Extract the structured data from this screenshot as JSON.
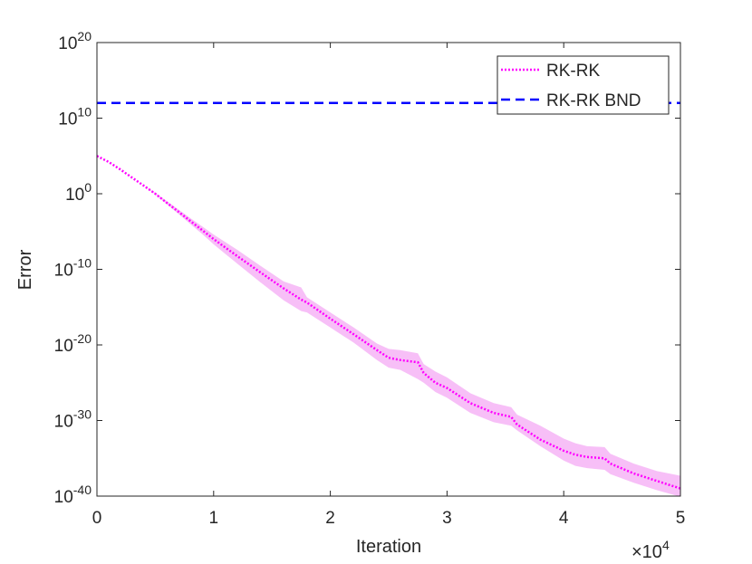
{
  "chart_data": {
    "type": "line",
    "title": "",
    "xlabel": "Iteration",
    "ylabel": "Error",
    "x_multiplier_label": {
      "base": "×10",
      "exp": "4"
    },
    "xlim": [
      0,
      50000
    ],
    "ylim": [
      1e-40,
      1e+20
    ],
    "yscale": "log",
    "x_ticks": [
      0,
      10000,
      20000,
      30000,
      40000,
      50000
    ],
    "x_tick_labels": [
      "0",
      "1",
      "2",
      "3",
      "4",
      "5"
    ],
    "y_ticks": [
      1e-40,
      1e-30,
      1e-20,
      1e-10,
      1,
      10000000000.0,
      1e+20
    ],
    "y_tick_labels": [
      {
        "base": "10",
        "exp": "-40"
      },
      {
        "base": "10",
        "exp": "-30"
      },
      {
        "base": "10",
        "exp": "-20"
      },
      {
        "base": "10",
        "exp": "-10"
      },
      {
        "base": "10",
        "exp": "0"
      },
      {
        "base": "10",
        "exp": "10"
      },
      {
        "base": "10",
        "exp": "20"
      }
    ],
    "grid": false,
    "legend": {
      "position": "top-right",
      "entries": [
        "RK-RK",
        "RK-RK BND"
      ]
    },
    "series": [
      {
        "name": "RK-RK",
        "color": "#ff00ff",
        "style": "dotted",
        "x": [
          0,
          1000,
          2000,
          3000,
          4000,
          5000,
          6000,
          7000,
          8000,
          9000,
          10000,
          12000,
          14000,
          16000,
          17500,
          18000,
          20000,
          22000,
          24000,
          25000,
          26000,
          27500,
          28000,
          29000,
          30000,
          32000,
          34000,
          35500,
          36000,
          38000,
          40000,
          41000,
          42000,
          43500,
          44000,
          46000,
          48000,
          50000
        ],
        "y": [
          100000.0,
          16000.0,
          1600.0,
          140,
          12,
          1,
          0.06,
          0.004,
          0.00025,
          1.6e-05,
          1e-06,
          6e-09,
          4e-11,
          3e-13,
          1e-14,
          4e-15,
          3e-17,
          2.5e-19,
          2e-21,
          2e-22,
          1e-22,
          5e-23,
          2e-24,
          1e-25,
          2e-26,
          2e-28,
          1e-29,
          3e-30,
          3e-31,
          3e-33,
          1e-34,
          3e-35,
          1.5e-35,
          1e-35,
          2e-36,
          1e-37,
          1e-38,
          1e-39
        ],
        "band_low": [
          100000.0,
          16000.0,
          1600.0,
          140,
          12,
          0.8,
          0.04,
          0.002,
          0.0001,
          5e-06,
          2e-07,
          6e-10,
          2e-12,
          8e-15,
          3e-16,
          2e-16,
          2e-18,
          2e-20,
          1e-22,
          1e-23,
          5e-24,
          3e-25,
          1e-25,
          6e-27,
          1e-27,
          1e-29,
          6e-31,
          2e-31,
          5e-32,
          4e-34,
          5e-36,
          1e-36,
          5e-37,
          3e-37,
          8e-38,
          6e-39,
          6e-40,
          8e-41
        ],
        "band_high": [
          100000.0,
          16000.0,
          1600.0,
          140,
          12,
          1.3,
          0.1,
          0.008,
          0.0006,
          5e-05,
          4e-06,
          4e-08,
          3e-10,
          2.5e-12,
          4e-13,
          2e-14,
          2e-16,
          2e-18,
          1.5e-20,
          3e-21,
          2e-21,
          8e-22,
          3e-23,
          3e-24,
          5e-25,
          4e-27,
          2e-28,
          6e-29,
          6e-30,
          2e-31,
          4e-33,
          1e-33,
          4e-34,
          3e-34,
          4e-35,
          2e-36,
          2e-37,
          5e-38
        ]
      },
      {
        "name": "RK-RK BND",
        "color": "#0000ff",
        "style": "dashed",
        "x": [
          0,
          50000
        ],
        "y": [
          1000000000000.0,
          1000000000000.0
        ]
      }
    ]
  }
}
